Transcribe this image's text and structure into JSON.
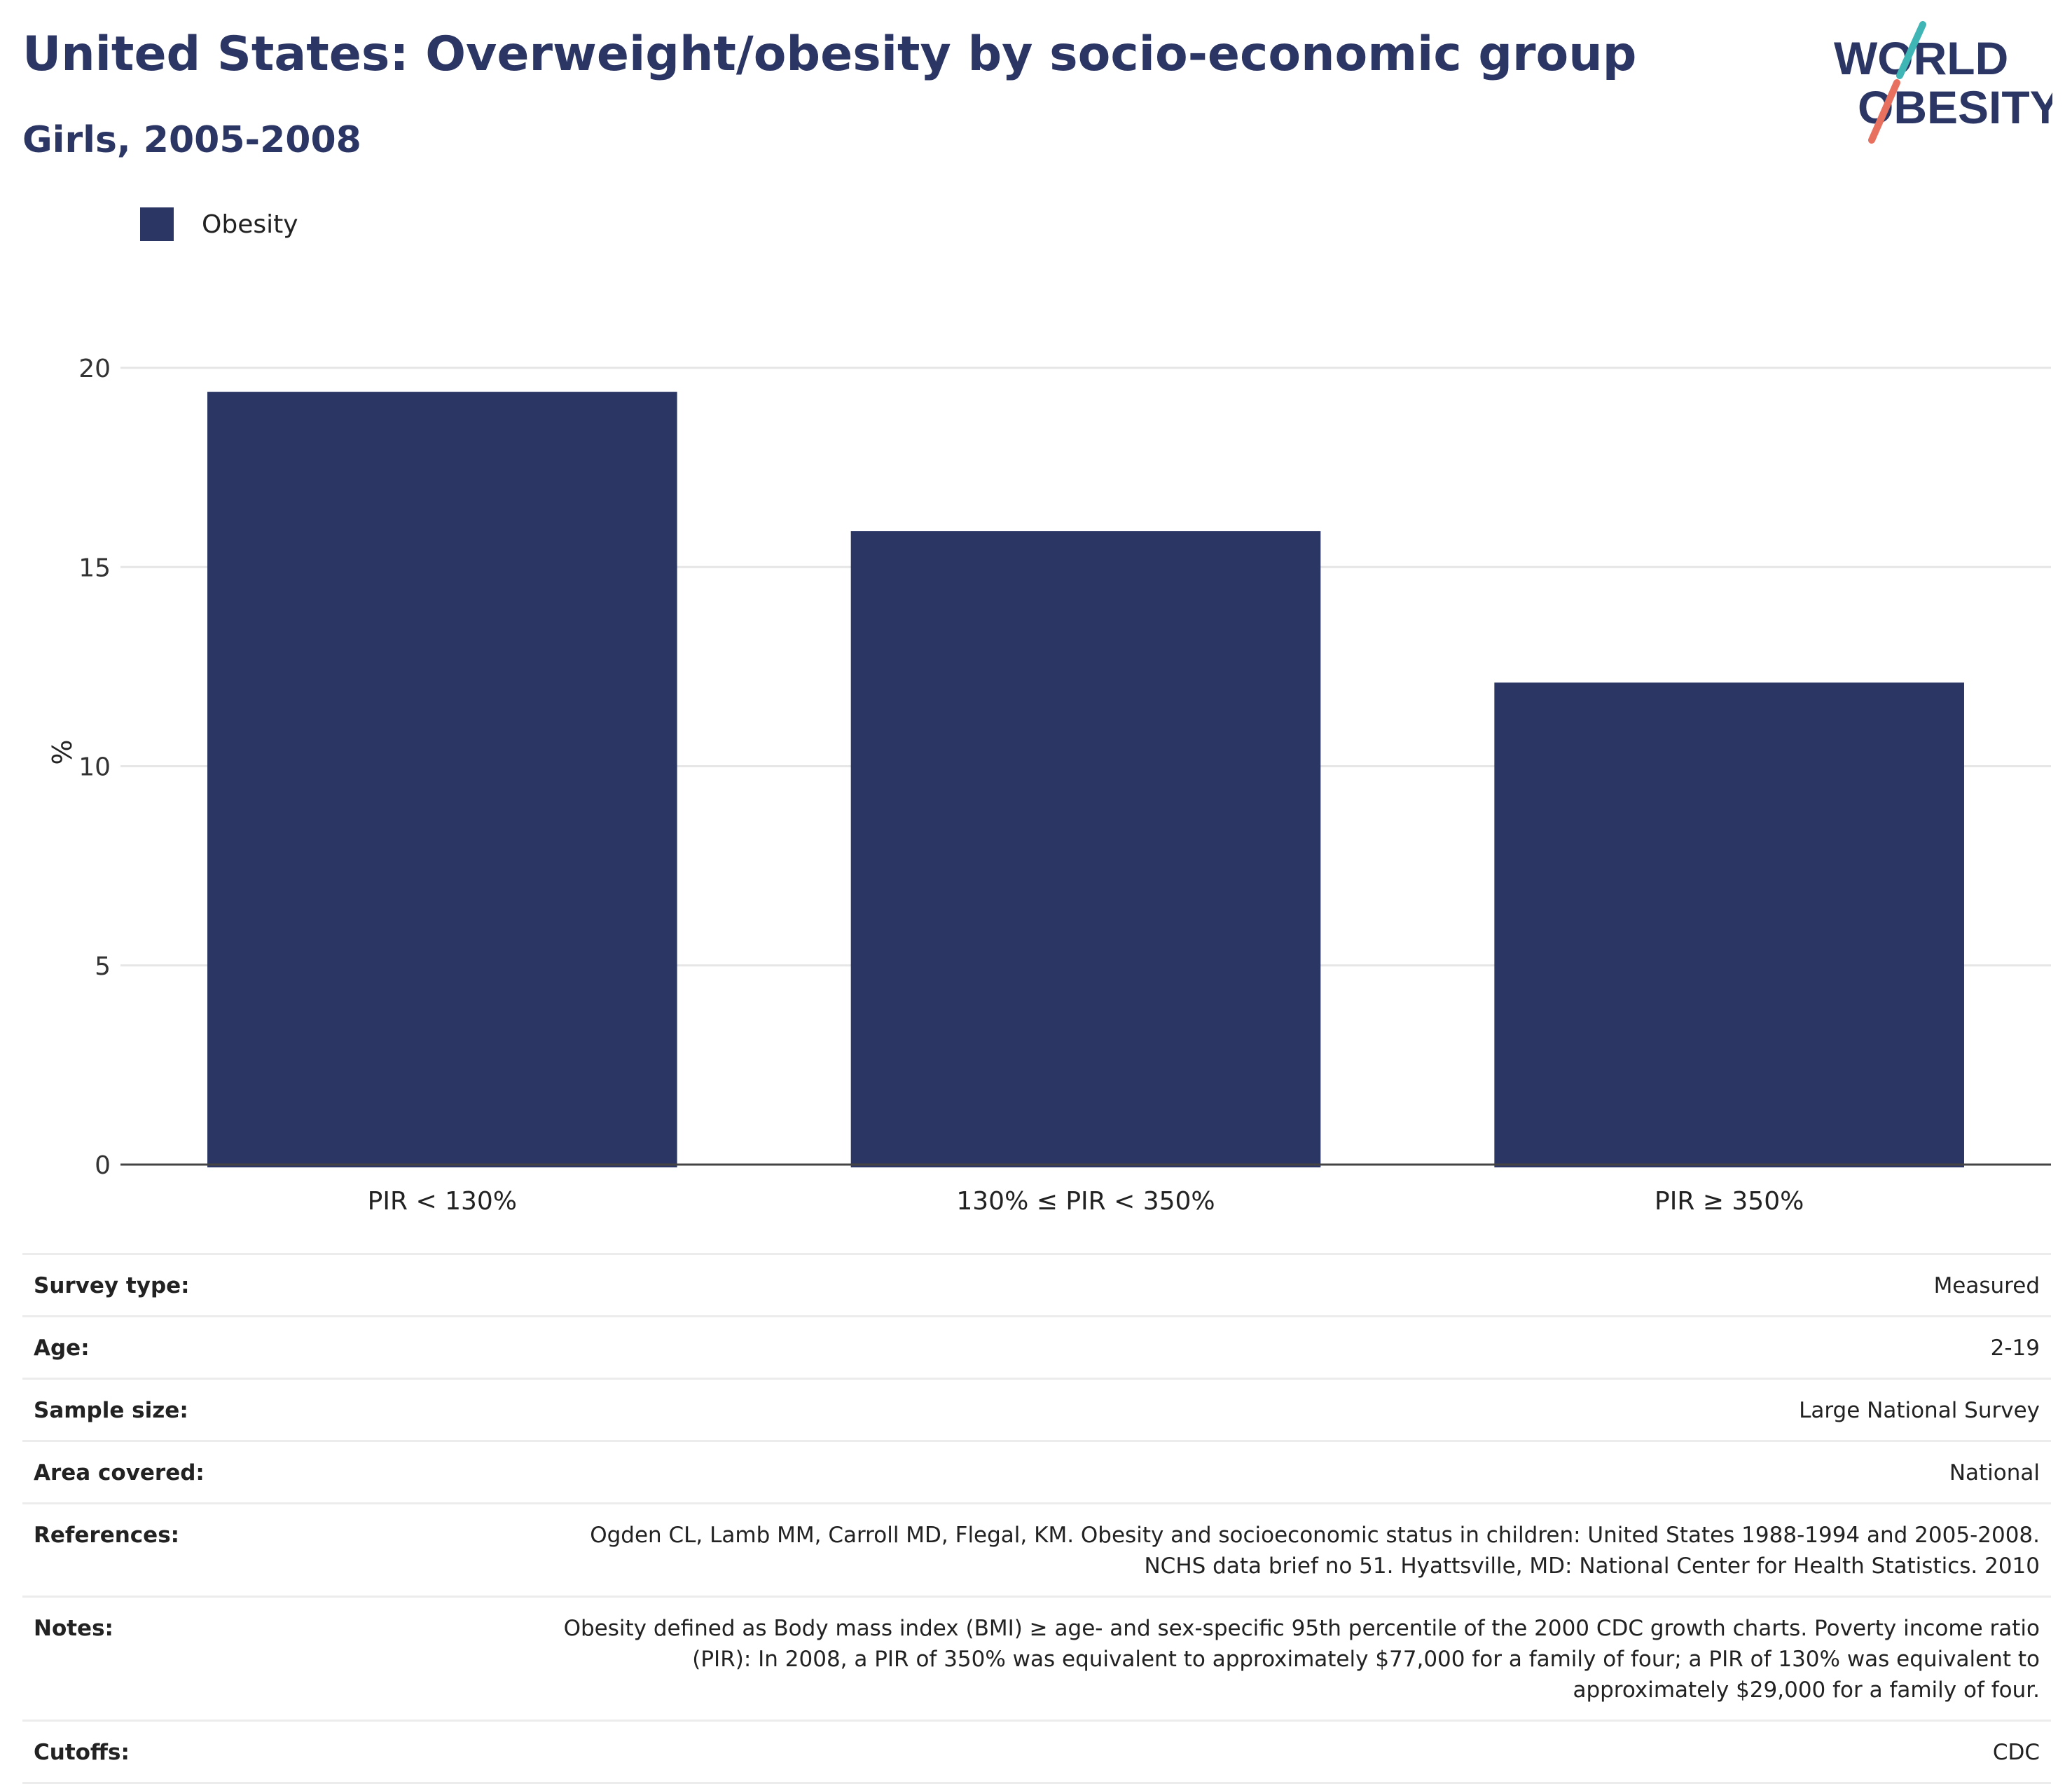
{
  "header": {
    "title": "United States: Overweight/obesity by socio-economic group",
    "subtitle": "Girls, 2005-2008"
  },
  "logo": {
    "line1": "WORLD",
    "line2": "OBESITY",
    "colors": {
      "text": "#2b3664",
      "accent_teal": "#3fb5b5",
      "accent_coral": "#e8705f"
    }
  },
  "legend": {
    "items": [
      {
        "label": "Obesity",
        "color": "#2b3664"
      }
    ]
  },
  "chart_data": {
    "type": "bar",
    "categories": [
      "PIR < 130%",
      "130% ≤ PIR < 350%",
      "PIR ≥ 350%"
    ],
    "series": [
      {
        "name": "Obesity",
        "values": [
          19.4,
          15.9,
          12.1
        ],
        "color": "#2b3664"
      }
    ],
    "xlabel": "",
    "ylabel": "%",
    "ylim": [
      0,
      20
    ],
    "yticks": [
      0,
      5,
      10,
      15,
      20
    ],
    "grid": true,
    "legend_position": "top-left"
  },
  "metadata": {
    "rows": [
      {
        "key": "Survey type:",
        "value": "Measured"
      },
      {
        "key": "Age:",
        "value": "2-19"
      },
      {
        "key": "Sample size:",
        "value": "Large National Survey"
      },
      {
        "key": "Area covered:",
        "value": "National"
      },
      {
        "key": "References:",
        "value_lines": [
          "Ogden CL, Lamb MM, Carroll MD, Flegal, KM. Obesity and socioeconomic status in children: United States 1988-1994 and 2005-2008.",
          "NCHS data brief no 51. Hyattsville, MD: National Center for Health Statistics. 2010"
        ]
      },
      {
        "key": "Notes:",
        "value_lines": [
          "Obesity defined as Body mass index (BMI) ≥ age- and sex-specific 95th percentile of the 2000 CDC growth charts. Poverty income ratio",
          "(PIR): In 2008, a PIR of 350% was equivalent to approximately $77,000 for a family of four; a PIR of 130% was equivalent to",
          "approximately $29,000 for a family of four."
        ]
      },
      {
        "key": "Cutoffs:",
        "value": "CDC"
      }
    ]
  }
}
